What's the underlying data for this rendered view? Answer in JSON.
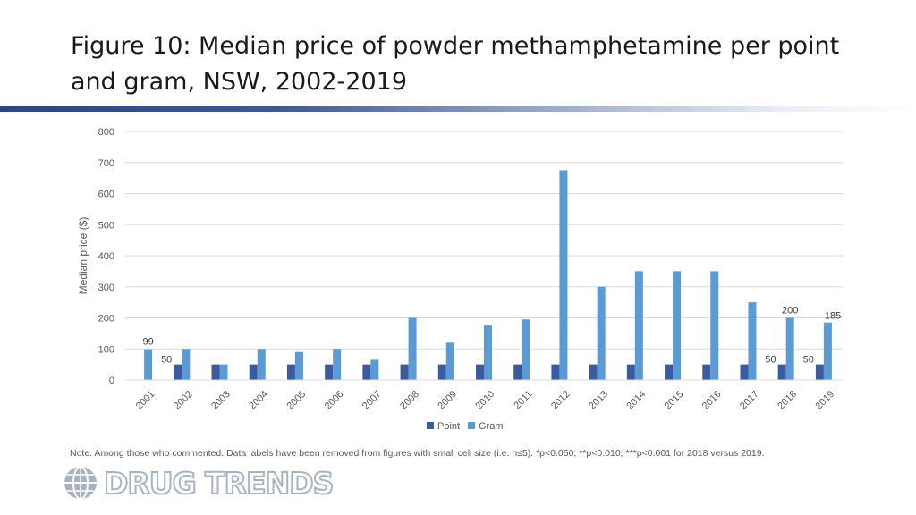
{
  "slide": {
    "title": "Figure 10: Median price of powder methamphetamine per point and gram, NSW, 2002-2019",
    "note": "Note. Among those who commented. Data labels have been removed from figures with small cell size (i.e. n≤5). *p<0.050; **p<0.010; ***p<0.001 for 2018 versus 2019.",
    "logo_text": "DRUG TRENDS"
  },
  "chart_data": {
    "type": "bar",
    "title": "",
    "xlabel": "",
    "ylabel": "Median price ($)",
    "ylim": [
      0,
      800
    ],
    "yticks": [
      0,
      100,
      200,
      300,
      400,
      500,
      600,
      700,
      800
    ],
    "grid": true,
    "legend": "bottom",
    "categories": [
      "2001",
      "2002",
      "2003",
      "2004",
      "2005",
      "2006",
      "2007",
      "2008",
      "2009",
      "2010",
      "2011",
      "2012",
      "2013",
      "2014",
      "2015",
      "2016",
      "2017",
      "2018",
      "2019"
    ],
    "series": [
      {
        "name": "Point",
        "color": "#3a5ba0",
        "values": [
          null,
          50,
          50,
          50,
          50,
          50,
          50,
          50,
          50,
          50,
          50,
          50,
          50,
          50,
          50,
          50,
          50,
          50,
          50
        ]
      },
      {
        "name": "Gram",
        "color": "#5b9bd5",
        "values": [
          99,
          100,
          50,
          100,
          90,
          100,
          65,
          200,
          120,
          175,
          195,
          675,
          300,
          350,
          350,
          350,
          250,
          200,
          185
        ]
      }
    ],
    "data_labels": [
      {
        "series": "Gram",
        "category": "2001",
        "text": "99"
      },
      {
        "series": "Point",
        "category": "2002",
        "text": "50"
      },
      {
        "series": "Point",
        "category": "2018",
        "text": "50"
      },
      {
        "series": "Gram",
        "category": "2018",
        "text": "200"
      },
      {
        "series": "Point",
        "category": "2019",
        "text": "50"
      },
      {
        "series": "Gram",
        "category": "2019",
        "text": "185"
      }
    ]
  }
}
